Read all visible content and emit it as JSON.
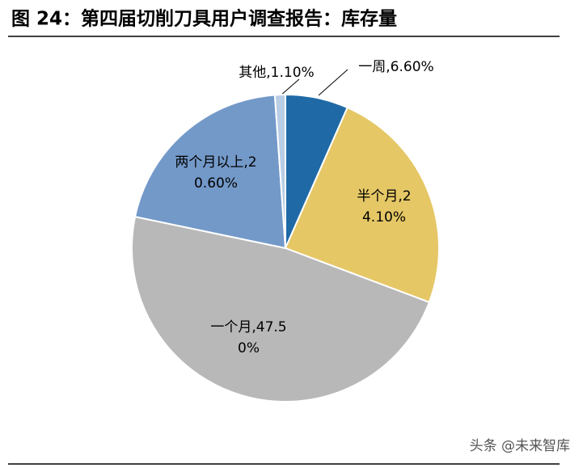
{
  "chart_data": {
    "type": "pie",
    "title": "图 24：第四届切削刀具用户调查报告：库存量",
    "categories": [
      "一周",
      "半个月",
      "一个月",
      "两个月以上",
      "其他"
    ],
    "values": [
      6.6,
      24.1,
      47.5,
      20.6,
      1.1
    ],
    "value_labels": [
      "一周,6.60%",
      "半个月,24.10%",
      "一个月,47.50%",
      "两个月以上,20.60%",
      "其他,1.10%"
    ],
    "colors": [
      "#1f6aa6",
      "#e5c766",
      "#b8b8b8",
      "#7399c9",
      "#b9cde5"
    ],
    "watermark": "头条 @未来智库"
  }
}
